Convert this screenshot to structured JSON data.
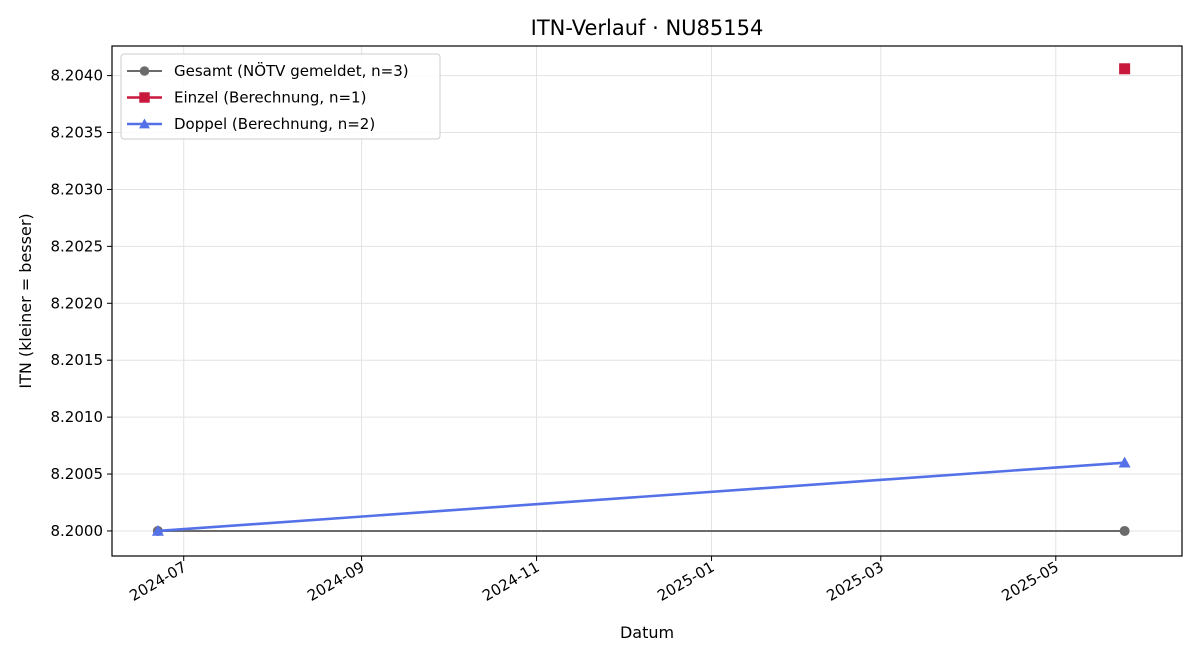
{
  "chart_data": {
    "type": "line",
    "title": "ITN-Verlauf · NU85154",
    "xlabel": "Datum",
    "ylabel": "ITN  (kleiner = besser)",
    "x_tick_labels": [
      "2024-07",
      "2024-09",
      "2024-11",
      "2025-01",
      "2025-03",
      "2025-05"
    ],
    "y_tick_labels": [
      "8.2000",
      "8.2005",
      "8.2010",
      "8.2015",
      "8.2020",
      "8.2025",
      "8.2030",
      "8.2035",
      "8.2040"
    ],
    "ylim": [
      8.19978,
      8.20426
    ],
    "xlim": [
      "2024-06-06",
      "2025-06-14"
    ],
    "grid": true,
    "legend_position": "top-left",
    "series": [
      {
        "name": "Gesamt (NÖTV gemeldet, n=3)",
        "color": "#6b6b6b",
        "marker": "circle",
        "points": [
          {
            "x": "2024-06-22",
            "y": 8.2
          },
          {
            "x": "2025-05-25",
            "y": 8.2
          }
        ]
      },
      {
        "name": "Einzel (Berechnung, n=1)",
        "color": "#c8193c",
        "marker": "square",
        "points": [
          {
            "x": "2025-05-25",
            "y": 8.20406
          }
        ]
      },
      {
        "name": "Doppel (Berechnung, n=2)",
        "color": "#5571e8",
        "marker": "triangle",
        "points": [
          {
            "x": "2024-06-22",
            "y": 8.2
          },
          {
            "x": "2025-05-25",
            "y": 8.2006
          }
        ]
      }
    ]
  }
}
